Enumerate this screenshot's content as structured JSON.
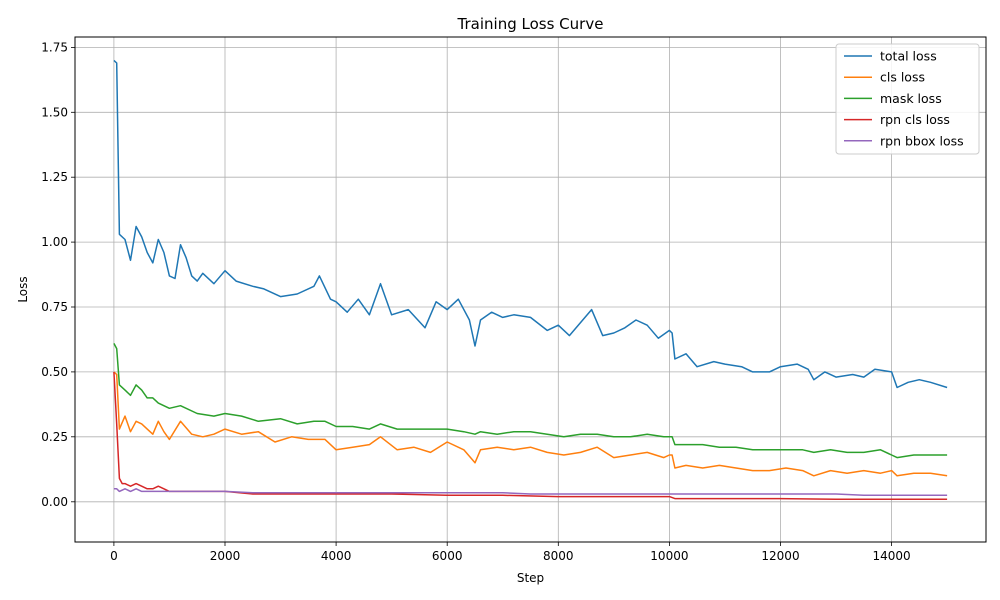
{
  "chart_data": {
    "type": "line",
    "title": "Training Loss Curve",
    "xlabel": "Step",
    "ylabel": "Loss",
    "xlim": [
      -700,
      15700
    ],
    "ylim": [
      -0.155,
      1.79
    ],
    "xticks": [
      0,
      2000,
      4000,
      6000,
      8000,
      10000,
      12000,
      14000
    ],
    "yticks": [
      0.0,
      0.25,
      0.5,
      0.75,
      1.0,
      1.25,
      1.5,
      1.75
    ],
    "xtick_labels": [
      "0",
      "2000",
      "4000",
      "6000",
      "8000",
      "10000",
      "12000",
      "14000"
    ],
    "ytick_labels": [
      "0.00",
      "0.25",
      "0.50",
      "0.75",
      "1.00",
      "1.25",
      "1.50",
      "1.75"
    ],
    "grid": true,
    "legend_position": "top-right",
    "series": [
      {
        "name": "total loss",
        "color": "#1f77b4",
        "x": [
          0,
          50,
          100,
          200,
          300,
          400,
          500,
          600,
          700,
          800,
          900,
          1000,
          1100,
          1200,
          1300,
          1400,
          1500,
          1600,
          1800,
          2000,
          2200,
          2500,
          2700,
          3000,
          3300,
          3600,
          3700,
          3900,
          4000,
          4200,
          4400,
          4600,
          4800,
          5000,
          5300,
          5600,
          5800,
          6000,
          6200,
          6400,
          6500,
          6600,
          6800,
          7000,
          7200,
          7500,
          7800,
          8000,
          8200,
          8400,
          8600,
          8800,
          9000,
          9200,
          9400,
          9600,
          9800,
          10000,
          10050,
          10100,
          10300,
          10500,
          10800,
          11000,
          11300,
          11500,
          11800,
          12000,
          12300,
          12500,
          12600,
          12800,
          13000,
          13300,
          13500,
          13700,
          14000,
          14100,
          14300,
          14500,
          14700,
          15000
        ],
        "values": [
          1.7,
          1.69,
          1.03,
          1.01,
          0.93,
          1.06,
          1.02,
          0.96,
          0.92,
          1.01,
          0.96,
          0.87,
          0.86,
          0.99,
          0.94,
          0.87,
          0.85,
          0.88,
          0.84,
          0.89,
          0.85,
          0.83,
          0.82,
          0.79,
          0.8,
          0.83,
          0.87,
          0.78,
          0.77,
          0.73,
          0.78,
          0.72,
          0.84,
          0.72,
          0.74,
          0.67,
          0.77,
          0.74,
          0.78,
          0.7,
          0.6,
          0.7,
          0.73,
          0.71,
          0.72,
          0.71,
          0.66,
          0.68,
          0.64,
          0.69,
          0.74,
          0.64,
          0.65,
          0.67,
          0.7,
          0.68,
          0.63,
          0.66,
          0.65,
          0.55,
          0.57,
          0.52,
          0.54,
          0.53,
          0.52,
          0.5,
          0.5,
          0.52,
          0.53,
          0.51,
          0.47,
          0.5,
          0.48,
          0.49,
          0.48,
          0.51,
          0.5,
          0.44,
          0.46,
          0.47,
          0.46,
          0.44
        ]
      },
      {
        "name": "cls loss",
        "color": "#ff7f0e",
        "x": [
          0,
          50,
          100,
          200,
          300,
          400,
          500,
          600,
          700,
          800,
          900,
          1000,
          1200,
          1400,
          1600,
          1800,
          2000,
          2300,
          2600,
          2900,
          3200,
          3500,
          3800,
          4000,
          4300,
          4600,
          4800,
          5100,
          5400,
          5700,
          6000,
          6300,
          6500,
          6600,
          6900,
          7200,
          7500,
          7800,
          8100,
          8400,
          8700,
          9000,
          9300,
          9600,
          9900,
          10000,
          10050,
          10100,
          10300,
          10600,
          10900,
          11200,
          11500,
          11800,
          12100,
          12400,
          12600,
          12900,
          13200,
          13500,
          13800,
          14000,
          14100,
          14400,
          14700,
          15000
        ],
        "values": [
          0.5,
          0.49,
          0.28,
          0.33,
          0.27,
          0.31,
          0.3,
          0.28,
          0.26,
          0.31,
          0.27,
          0.24,
          0.31,
          0.26,
          0.25,
          0.26,
          0.28,
          0.26,
          0.27,
          0.23,
          0.25,
          0.24,
          0.24,
          0.2,
          0.21,
          0.22,
          0.25,
          0.2,
          0.21,
          0.19,
          0.23,
          0.2,
          0.15,
          0.2,
          0.21,
          0.2,
          0.21,
          0.19,
          0.18,
          0.19,
          0.21,
          0.17,
          0.18,
          0.19,
          0.17,
          0.18,
          0.18,
          0.13,
          0.14,
          0.13,
          0.14,
          0.13,
          0.12,
          0.12,
          0.13,
          0.12,
          0.1,
          0.12,
          0.11,
          0.12,
          0.11,
          0.12,
          0.1,
          0.11,
          0.11,
          0.1
        ]
      },
      {
        "name": "mask loss",
        "color": "#2ca02c",
        "x": [
          0,
          50,
          100,
          200,
          300,
          400,
          500,
          600,
          700,
          800,
          1000,
          1200,
          1500,
          1800,
          2000,
          2300,
          2600,
          3000,
          3300,
          3600,
          3800,
          4000,
          4300,
          4600,
          4800,
          5100,
          5400,
          5700,
          6000,
          6300,
          6500,
          6600,
          6900,
          7200,
          7500,
          7800,
          8100,
          8400,
          8700,
          9000,
          9300,
          9600,
          9900,
          10000,
          10050,
          10100,
          10300,
          10600,
          10900,
          11200,
          11500,
          11800,
          12100,
          12400,
          12600,
          12900,
          13200,
          13500,
          13800,
          14000,
          14100,
          14400,
          14700,
          15000
        ],
        "values": [
          0.61,
          0.59,
          0.45,
          0.43,
          0.41,
          0.45,
          0.43,
          0.4,
          0.4,
          0.38,
          0.36,
          0.37,
          0.34,
          0.33,
          0.34,
          0.33,
          0.31,
          0.32,
          0.3,
          0.31,
          0.31,
          0.29,
          0.29,
          0.28,
          0.3,
          0.28,
          0.28,
          0.28,
          0.28,
          0.27,
          0.26,
          0.27,
          0.26,
          0.27,
          0.27,
          0.26,
          0.25,
          0.26,
          0.26,
          0.25,
          0.25,
          0.26,
          0.25,
          0.25,
          0.25,
          0.22,
          0.22,
          0.22,
          0.21,
          0.21,
          0.2,
          0.2,
          0.2,
          0.2,
          0.19,
          0.2,
          0.19,
          0.19,
          0.2,
          0.18,
          0.17,
          0.18,
          0.18,
          0.18
        ]
      },
      {
        "name": "rpn cls loss",
        "color": "#d62728",
        "x": [
          0,
          50,
          100,
          150,
          200,
          300,
          400,
          500,
          600,
          700,
          800,
          900,
          1000,
          1200,
          1500,
          2000,
          2500,
          3000,
          3500,
          4000,
          5000,
          6000,
          7000,
          8000,
          9000,
          9900,
          10000,
          10100,
          11000,
          12000,
          13000,
          14000,
          15000
        ],
        "values": [
          0.5,
          0.3,
          0.09,
          0.07,
          0.07,
          0.06,
          0.07,
          0.06,
          0.05,
          0.05,
          0.06,
          0.05,
          0.04,
          0.04,
          0.04,
          0.04,
          0.03,
          0.03,
          0.03,
          0.03,
          0.03,
          0.025,
          0.025,
          0.02,
          0.02,
          0.02,
          0.02,
          0.012,
          0.012,
          0.012,
          0.01,
          0.01,
          0.01
        ]
      },
      {
        "name": "rpn bbox loss",
        "color": "#9467bd",
        "x": [
          0,
          50,
          100,
          200,
          300,
          400,
          500,
          600,
          700,
          800,
          1000,
          1200,
          1500,
          2000,
          2500,
          3000,
          3500,
          4000,
          4500,
          5000,
          5500,
          6000,
          6500,
          7000,
          7500,
          8000,
          8500,
          9000,
          9500,
          10000,
          10500,
          11000,
          11500,
          12000,
          12500,
          13000,
          13500,
          14000,
          14500,
          15000
        ],
        "values": [
          0.05,
          0.05,
          0.04,
          0.05,
          0.04,
          0.05,
          0.04,
          0.04,
          0.04,
          0.04,
          0.04,
          0.04,
          0.04,
          0.04,
          0.035,
          0.035,
          0.035,
          0.035,
          0.035,
          0.035,
          0.035,
          0.035,
          0.035,
          0.035,
          0.03,
          0.03,
          0.03,
          0.03,
          0.03,
          0.03,
          0.03,
          0.03,
          0.03,
          0.03,
          0.03,
          0.03,
          0.025,
          0.025,
          0.025,
          0.025
        ]
      }
    ]
  }
}
